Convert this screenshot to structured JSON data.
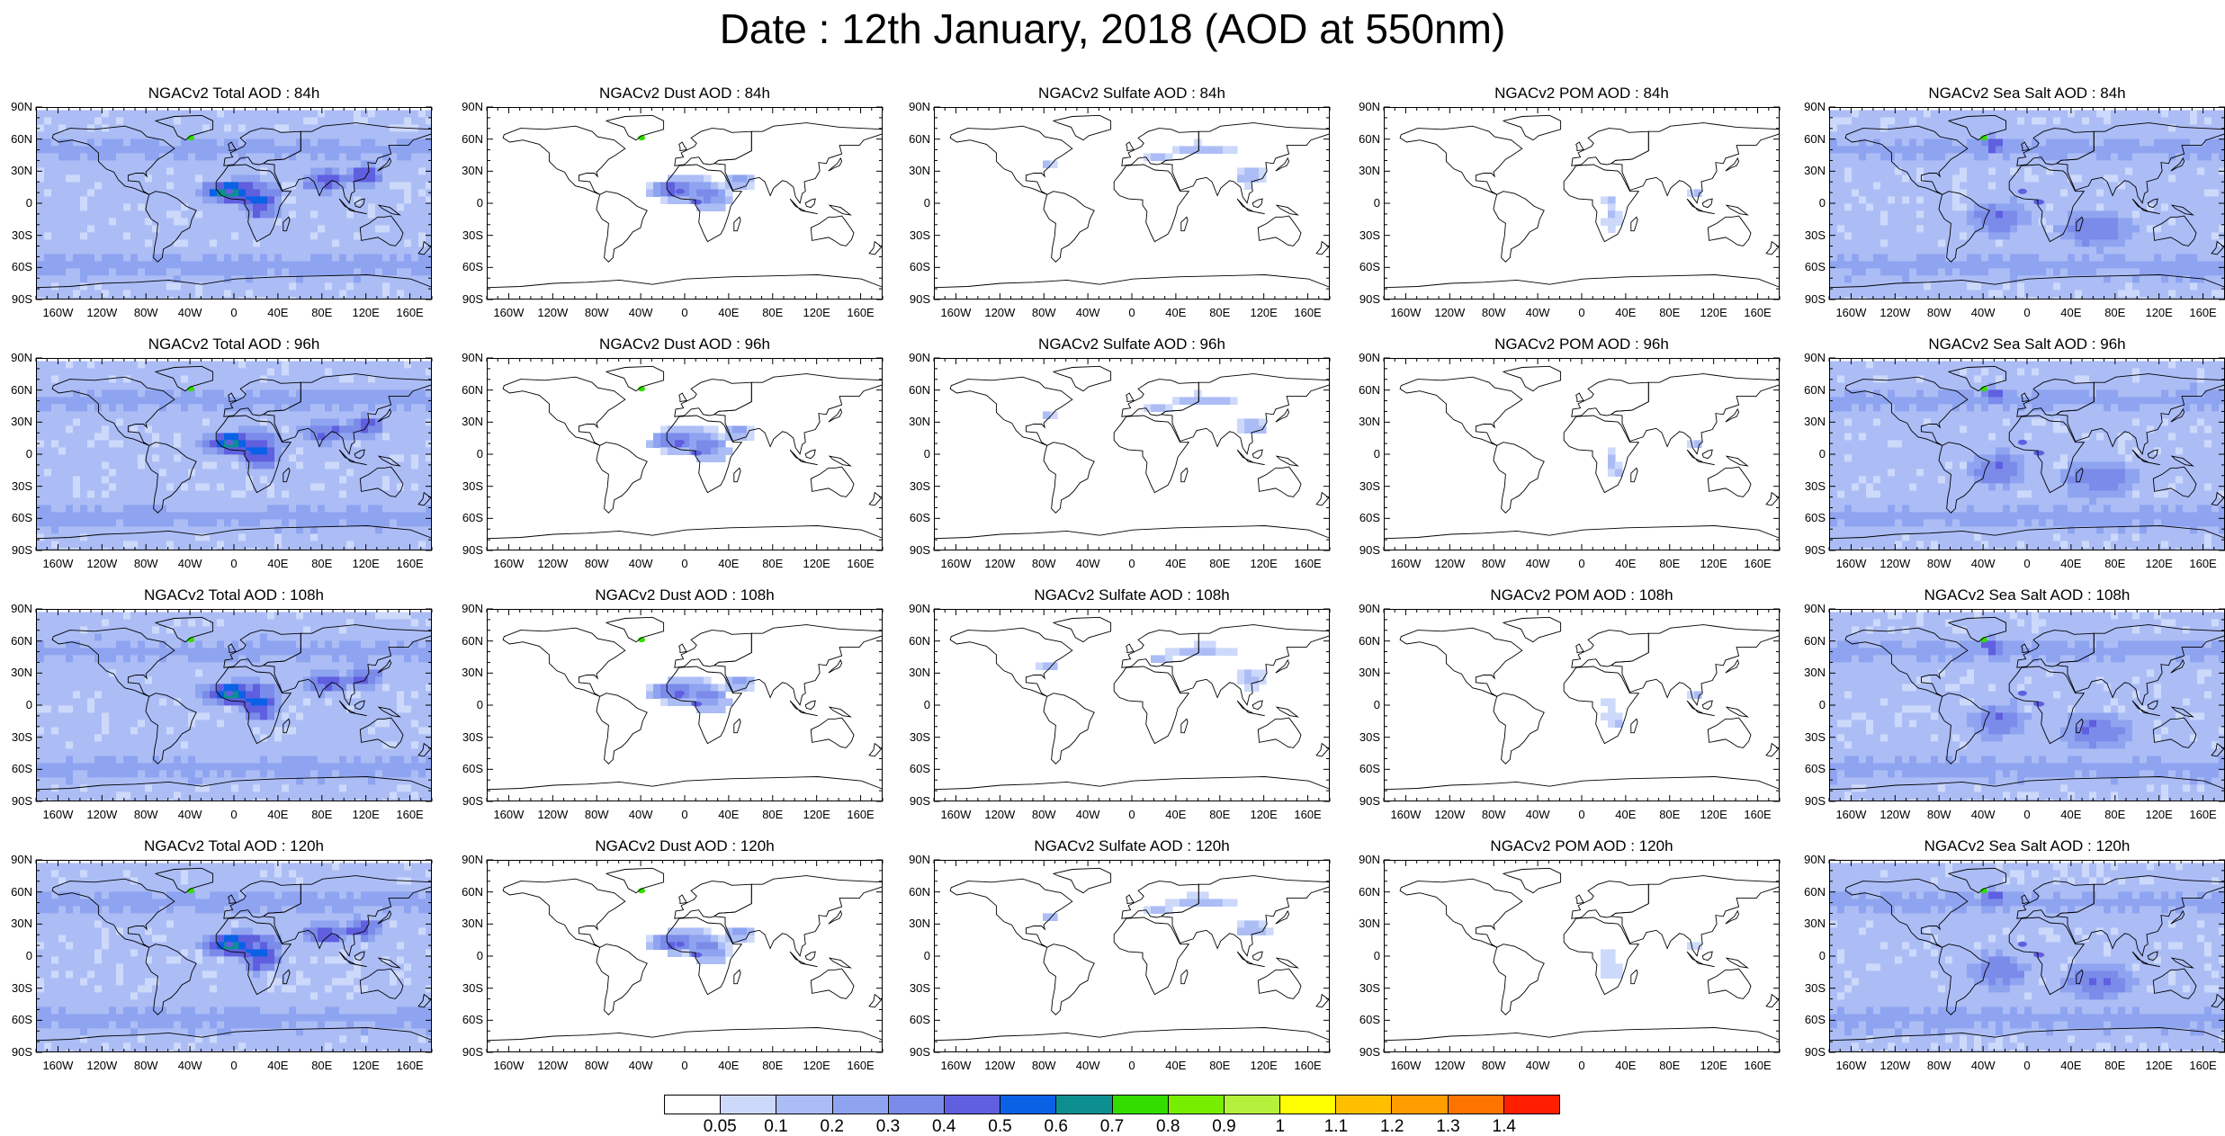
{
  "title": "Date : 12th January, 2018 (AOD at 550nm)",
  "lat_labels": [
    "90N",
    "60N",
    "30N",
    "0",
    "30S",
    "60S",
    "90S"
  ],
  "lon_labels": [
    "160W",
    "120W",
    "80W",
    "40W",
    "0",
    "40E",
    "80E",
    "120E",
    "160E"
  ],
  "species": [
    {
      "key": "total",
      "name": "Total",
      "intensity": 1.0,
      "ocean": true,
      "land": "africa"
    },
    {
      "key": "dust",
      "name": "Dust",
      "intensity": 0.75,
      "ocean": false,
      "land": "sahara"
    },
    {
      "key": "sulfate",
      "name": "Sulfate",
      "intensity": 0.35,
      "ocean": false,
      "land": "asia"
    },
    {
      "key": "pom",
      "name": "POM",
      "intensity": 0.3,
      "ocean": false,
      "land": "safrica"
    },
    {
      "key": "seasalt",
      "name": "Sea Salt",
      "intensity": 0.8,
      "ocean": true,
      "land": "ocean"
    }
  ],
  "panels": [
    {
      "title": "NGACv2 Total AOD : 84h"
    },
    {
      "title": "NGACv2 Dust AOD : 84h"
    },
    {
      "title": "NGACv2 Sulfate AOD : 84h"
    },
    {
      "title": "NGACv2 POM AOD : 84h"
    },
    {
      "title": "NGACv2 Sea Salt AOD : 84h"
    },
    {
      "title": "NGACv2 Total AOD : 96h"
    },
    {
      "title": "NGACv2 Dust AOD : 96h"
    },
    {
      "title": "NGACv2 Sulfate AOD : 96h"
    },
    {
      "title": "NGACv2 POM AOD : 96h"
    },
    {
      "title": "NGACv2 Sea Salt AOD : 96h"
    },
    {
      "title": "NGACv2 Total AOD : 108h"
    },
    {
      "title": "NGACv2 Dust AOD : 108h"
    },
    {
      "title": "NGACv2 Sulfate AOD : 108h"
    },
    {
      "title": "NGACv2 POM AOD : 108h"
    },
    {
      "title": "NGACv2 Sea Salt AOD : 108h"
    },
    {
      "title": "NGACv2 Total AOD : 120h"
    },
    {
      "title": "NGACv2 Dust AOD : 120h"
    },
    {
      "title": "NGACv2 Sulfate AOD : 120h"
    },
    {
      "title": "NGACv2 POM AOD : 120h"
    },
    {
      "title": "NGACv2 Sea Salt  AOD : 120h"
    }
  ],
  "colorbar": {
    "labels": [
      "0.05",
      "0.1",
      "0.2",
      "0.3",
      "0.4",
      "0.5",
      "0.6",
      "0.7",
      "0.8",
      "0.9",
      "1",
      "1.1",
      "1.2",
      "1.3",
      "1.4"
    ],
    "colors": [
      "#ffffff",
      "#cdd9fb",
      "#acbdf6",
      "#8fa4f0",
      "#7b8bea",
      "#5f5fe0",
      "#0a61e6",
      "#0d8f8f",
      "#33dd00",
      "#77ee00",
      "#b5f03c",
      "#ffff00",
      "#ffbf00",
      "#ff9c00",
      "#ff7300",
      "#ff1f00"
    ]
  }
}
